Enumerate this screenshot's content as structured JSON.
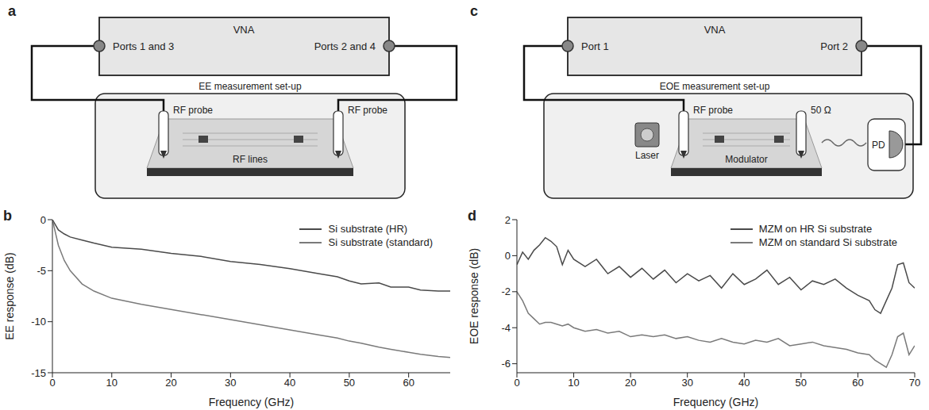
{
  "diagrams": [
    {
      "label": "a",
      "instrument": "VNA",
      "ports": [
        "Ports 1 and 3",
        "Ports 2 and 4"
      ],
      "setup": "EE measurement set-up",
      "probes": [
        "RF probe",
        "RF probe"
      ],
      "device": "RF lines"
    },
    {
      "label": "c",
      "instrument": "VNA",
      "ports": [
        "Port 1",
        "Port 2"
      ],
      "setup": "EOE measurement set-up",
      "probe": "RF probe",
      "termination": "50 Ω",
      "laser": "Laser",
      "device": "Modulator",
      "detector": "PD"
    }
  ],
  "chart_data": [
    {
      "type": "line",
      "label": "b",
      "x_label": "Frequency (GHz)",
      "y_label": "EE response (dB)",
      "x": [
        0,
        1,
        2,
        3,
        5,
        7,
        10,
        15,
        20,
        25,
        30,
        35,
        40,
        45,
        48,
        50,
        52,
        55,
        57,
        60,
        62,
        65,
        67
      ],
      "series": [
        {
          "name": "Si substrate (HR)",
          "color": "#4a4a4a",
          "values": [
            0,
            -1.0,
            -1.4,
            -1.7,
            -2.0,
            -2.3,
            -2.7,
            -2.9,
            -3.3,
            -3.6,
            -4.1,
            -4.4,
            -4.8,
            -5.3,
            -5.6,
            -6.0,
            -6.3,
            -6.2,
            -6.6,
            -6.6,
            -6.9,
            -7.0,
            -7.0
          ]
        },
        {
          "name": "Si substrate (standard)",
          "color": "#7a7a7a",
          "values": [
            0,
            -2.5,
            -4.0,
            -5.0,
            -6.3,
            -7.0,
            -7.7,
            -8.3,
            -8.8,
            -9.3,
            -9.8,
            -10.3,
            -10.8,
            -11.3,
            -11.6,
            -11.9,
            -12.1,
            -12.5,
            -12.7,
            -13.0,
            -13.2,
            -13.4,
            -13.5
          ]
        }
      ],
      "xlim": [
        0,
        67
      ],
      "xticks": [
        0,
        10,
        20,
        30,
        40,
        50,
        60
      ],
      "ylim": [
        -15,
        0
      ],
      "yticks": [
        -15,
        -10,
        -5,
        0
      ],
      "grid": false,
      "legend": "top-right"
    },
    {
      "type": "line",
      "label": "d",
      "x_label": "Frequency (GHz)",
      "y_label": "EOE response (dB)",
      "x": [
        0,
        1,
        2,
        3,
        4,
        5,
        6,
        7,
        8,
        9,
        10,
        12,
        14,
        16,
        18,
        20,
        22,
        24,
        26,
        28,
        30,
        32,
        34,
        36,
        38,
        40,
        42,
        44,
        46,
        48,
        50,
        52,
        54,
        56,
        58,
        60,
        62,
        63,
        64,
        65,
        66,
        67,
        68,
        69,
        70
      ],
      "series": [
        {
          "name": "MZM on HR Si substrate",
          "color": "#4a4a4a",
          "values": [
            -0.5,
            0.2,
            -0.2,
            0.3,
            0.6,
            1.0,
            0.8,
            0.5,
            -0.5,
            0.3,
            -0.2,
            -0.6,
            -0.2,
            -1.0,
            -0.6,
            -1.2,
            -0.7,
            -1.3,
            -0.8,
            -1.5,
            -1.0,
            -1.4,
            -1.1,
            -1.8,
            -1.0,
            -1.6,
            -1.3,
            -0.8,
            -1.6,
            -1.2,
            -1.9,
            -1.4,
            -1.6,
            -1.3,
            -1.8,
            -2.2,
            -2.5,
            -3.0,
            -3.2,
            -2.5,
            -1.8,
            -0.5,
            -0.4,
            -1.5,
            -1.8
          ]
        },
        {
          "name": "MZM on standard Si substrate",
          "color": "#7a7a7a",
          "values": [
            -2.0,
            -2.5,
            -3.2,
            -3.5,
            -3.8,
            -3.7,
            -3.7,
            -3.8,
            -3.9,
            -3.8,
            -4.0,
            -4.2,
            -4.1,
            -4.3,
            -4.2,
            -4.5,
            -4.4,
            -4.5,
            -4.4,
            -4.6,
            -4.5,
            -4.7,
            -4.8,
            -4.6,
            -4.8,
            -4.9,
            -4.7,
            -4.8,
            -4.6,
            -5.0,
            -4.9,
            -4.8,
            -5.0,
            -5.1,
            -5.2,
            -5.4,
            -5.5,
            -5.8,
            -6.0,
            -6.2,
            -5.5,
            -4.5,
            -4.3,
            -5.5,
            -5.0
          ]
        }
      ],
      "xlim": [
        0,
        70
      ],
      "xticks": [
        0,
        10,
        20,
        30,
        40,
        50,
        60,
        70
      ],
      "ylim": [
        -6.5,
        2
      ],
      "yticks": [
        -6,
        -4,
        -2,
        0,
        2
      ],
      "grid": false,
      "legend": "top-right"
    }
  ]
}
